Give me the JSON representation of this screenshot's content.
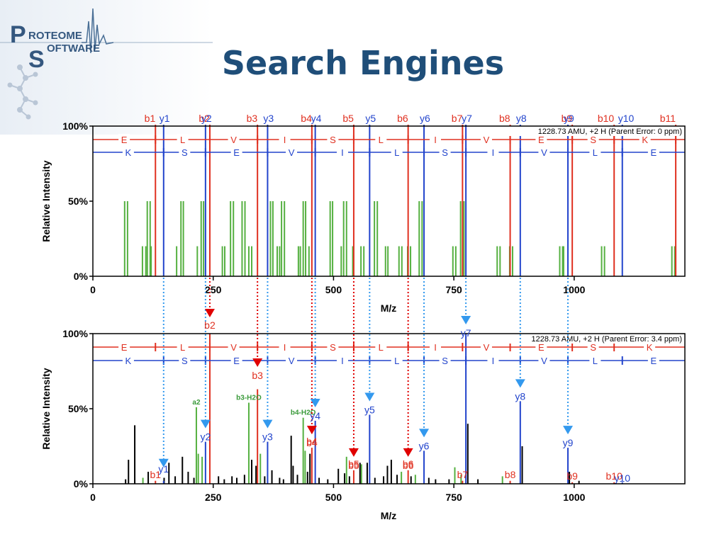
{
  "title": "Search Engines",
  "logo": {
    "line1": "PROTEOME",
    "line2": "SOFTWARE",
    "cap1": "P",
    "cap2": "S",
    "rest1": "ROTEOME",
    "rest2": "OFTWARE"
  },
  "colors": {
    "b_ion": "#e03020",
    "y_ion": "#2244cc",
    "green": "#55b040",
    "black": "#000000",
    "arrow_b": "#e00000",
    "arrow_y": "#3399ee",
    "title": "#1f4e79"
  },
  "chart_data": [
    {
      "type": "bar",
      "name": "theoretical",
      "xlabel": "M/z",
      "ylabel": "Relative Intensity",
      "xlim": [
        0,
        1230
      ],
      "xticks": [
        0,
        250,
        500,
        750,
        1000
      ],
      "yticks": [
        "0%",
        "50%",
        "100%"
      ],
      "info": "1228.73 AMU, +2 H (Parent Error: 0 ppm)",
      "b_sequence": [
        "E",
        "L",
        "V",
        "I",
        "S",
        "L",
        "I",
        "V",
        "E",
        "S",
        "K"
      ],
      "y_sequence": [
        "K",
        "S",
        "E",
        "V",
        "I",
        "L",
        "S",
        "I",
        "V",
        "L",
        "E"
      ],
      "b_ions": [
        {
          "label": "b1",
          "mz": 130
        },
        {
          "label": "b2",
          "mz": 243
        },
        {
          "label": "b3",
          "mz": 342
        },
        {
          "label": "b4",
          "mz": 455
        },
        {
          "label": "b5",
          "mz": 542
        },
        {
          "label": "b6",
          "mz": 655
        },
        {
          "label": "b7",
          "mz": 768
        },
        {
          "label": "b8",
          "mz": 867
        },
        {
          "label": "b9",
          "mz": 996
        },
        {
          "label": "b10",
          "mz": 1083
        },
        {
          "label": "b11",
          "mz": 1211
        }
      ],
      "y_ions": [
        {
          "label": "y1",
          "mz": 147
        },
        {
          "label": "y2",
          "mz": 234
        },
        {
          "label": "y3",
          "mz": 363
        },
        {
          "label": "y4",
          "mz": 462
        },
        {
          "label": "y5",
          "mz": 575
        },
        {
          "label": "y6",
          "mz": 688
        },
        {
          "label": "y7",
          "mz": 775
        },
        {
          "label": "y8",
          "mz": 888
        },
        {
          "label": "y9",
          "mz": 987
        },
        {
          "label": "y10",
          "mz": 1100
        }
      ],
      "green_peaks": [
        {
          "mz": 66,
          "y": 50
        },
        {
          "mz": 72,
          "y": 50
        },
        {
          "mz": 103,
          "y": 20
        },
        {
          "mz": 110,
          "y": 20
        },
        {
          "mz": 113,
          "y": 50
        },
        {
          "mz": 119,
          "y": 50
        },
        {
          "mz": 121,
          "y": 20
        },
        {
          "mz": 174,
          "y": 20
        },
        {
          "mz": 183,
          "y": 50
        },
        {
          "mz": 188,
          "y": 50
        },
        {
          "mz": 217,
          "y": 20
        },
        {
          "mz": 225,
          "y": 50
        },
        {
          "mz": 230,
          "y": 50
        },
        {
          "mz": 269,
          "y": 20
        },
        {
          "mz": 274,
          "y": 20
        },
        {
          "mz": 286,
          "y": 50
        },
        {
          "mz": 292,
          "y": 50
        },
        {
          "mz": 310,
          "y": 50
        },
        {
          "mz": 316,
          "y": 50
        },
        {
          "mz": 324,
          "y": 20
        },
        {
          "mz": 330,
          "y": 20
        },
        {
          "mz": 369,
          "y": 50
        },
        {
          "mz": 374,
          "y": 50
        },
        {
          "mz": 383,
          "y": 20
        },
        {
          "mz": 388,
          "y": 20
        },
        {
          "mz": 392,
          "y": 50
        },
        {
          "mz": 398,
          "y": 50
        },
        {
          "mz": 427,
          "y": 20
        },
        {
          "mz": 431,
          "y": 20
        },
        {
          "mz": 437,
          "y": 50
        },
        {
          "mz": 442,
          "y": 50
        },
        {
          "mz": 449,
          "y": 20
        },
        {
          "mz": 493,
          "y": 50
        },
        {
          "mz": 498,
          "y": 50
        },
        {
          "mz": 516,
          "y": 20
        },
        {
          "mz": 521,
          "y": 50
        },
        {
          "mz": 527,
          "y": 50
        },
        {
          "mz": 540,
          "y": 20
        },
        {
          "mz": 557,
          "y": 20
        },
        {
          "mz": 563,
          "y": 20
        },
        {
          "mz": 585,
          "y": 50
        },
        {
          "mz": 591,
          "y": 50
        },
        {
          "mz": 608,
          "y": 20
        },
        {
          "mz": 613,
          "y": 20
        },
        {
          "mz": 636,
          "y": 20
        },
        {
          "mz": 642,
          "y": 20
        },
        {
          "mz": 654,
          "y": 20
        },
        {
          "mz": 660,
          "y": 20
        },
        {
          "mz": 678,
          "y": 50
        },
        {
          "mz": 684,
          "y": 50
        },
        {
          "mz": 748,
          "y": 20
        },
        {
          "mz": 754,
          "y": 20
        },
        {
          "mz": 764,
          "y": 50
        },
        {
          "mz": 771,
          "y": 50
        },
        {
          "mz": 840,
          "y": 20
        },
        {
          "mz": 846,
          "y": 20
        },
        {
          "mz": 866,
          "y": 20
        },
        {
          "mz": 872,
          "y": 20
        },
        {
          "mz": 970,
          "y": 20
        },
        {
          "mz": 976,
          "y": 20
        },
        {
          "mz": 978,
          "y": 20
        },
        {
          "mz": 1057,
          "y": 20
        },
        {
          "mz": 1063,
          "y": 20
        },
        {
          "mz": 1203,
          "y": 20
        },
        {
          "mz": 1209,
          "y": 20
        }
      ]
    },
    {
      "type": "bar",
      "name": "observed",
      "xlabel": "M/z",
      "ylabel": "Relative Intensity",
      "xlim": [
        0,
        1230
      ],
      "xticks": [
        0,
        250,
        500,
        750,
        1000
      ],
      "yticks": [
        "0%",
        "50%",
        "100%"
      ],
      "info": "1228.73 AMU, +2 H (Parent Error: 3.4 ppm)",
      "b_sequence": [
        "E",
        "L",
        "V",
        "I",
        "S",
        "L",
        "I",
        "V",
        "E",
        "S",
        "K"
      ],
      "y_sequence": [
        "K",
        "S",
        "E",
        "V",
        "I",
        "L",
        "S",
        "I",
        "V",
        "L",
        "E"
      ],
      "annotations": [
        {
          "label": "a2",
          "mz": 215,
          "y": 51
        },
        {
          "label": "b3-H2O",
          "mz": 324,
          "y": 54
        },
        {
          "label": "b4-H2O",
          "mz": 437,
          "y": 44
        }
      ],
      "b_ions": [
        {
          "label": "b1",
          "mz": 130,
          "y": 2
        },
        {
          "label": "b2",
          "mz": 243,
          "y": 100
        },
        {
          "label": "b3",
          "mz": 342,
          "y": 63
        },
        {
          "label": "b4",
          "mz": 455,
          "y": 24
        },
        {
          "label": "b5",
          "mz": 542,
          "y": 9
        },
        {
          "label": "b6",
          "mz": 655,
          "y": 9
        },
        {
          "label": "b7",
          "mz": 768,
          "y": 2
        },
        {
          "label": "b8",
          "mz": 867,
          "y": 2
        },
        {
          "label": "b9",
          "mz": 996,
          "y": 1
        },
        {
          "label": "b10",
          "mz": 1083,
          "y": 1
        }
      ],
      "y_ions": [
        {
          "label": "y1",
          "mz": 147,
          "y": 2
        },
        {
          "label": "y2",
          "mz": 234,
          "y": 28
        },
        {
          "label": "y3",
          "mz": 363,
          "y": 28
        },
        {
          "label": "y4",
          "mz": 462,
          "y": 42
        },
        {
          "label": "y5",
          "mz": 575,
          "y": 46
        },
        {
          "label": "y6",
          "mz": 688,
          "y": 22
        },
        {
          "label": "y7",
          "mz": 775,
          "y": 100
        },
        {
          "label": "y8",
          "mz": 888,
          "y": 55
        },
        {
          "label": "y9",
          "mz": 987,
          "y": 24
        },
        {
          "label": "y10",
          "mz": 1100,
          "y": 1
        }
      ],
      "green_peaks": [
        {
          "mz": 104,
          "y": 4
        },
        {
          "mz": 215,
          "y": 51
        },
        {
          "mz": 219,
          "y": 20
        },
        {
          "mz": 227,
          "y": 18
        },
        {
          "mz": 324,
          "y": 54
        },
        {
          "mz": 348,
          "y": 20
        },
        {
          "mz": 437,
          "y": 44
        },
        {
          "mz": 441,
          "y": 22
        },
        {
          "mz": 527,
          "y": 18
        },
        {
          "mz": 558,
          "y": 13
        },
        {
          "mz": 641,
          "y": 8
        },
        {
          "mz": 670,
          "y": 6
        },
        {
          "mz": 752,
          "y": 11
        },
        {
          "mz": 765,
          "y": 6
        },
        {
          "mz": 851,
          "y": 5
        }
      ],
      "black_peaks": [
        {
          "mz": 68,
          "y": 3
        },
        {
          "mz": 74,
          "y": 16
        },
        {
          "mz": 87,
          "y": 39
        },
        {
          "mz": 115,
          "y": 8
        },
        {
          "mz": 148,
          "y": 4
        },
        {
          "mz": 158,
          "y": 14
        },
        {
          "mz": 171,
          "y": 5
        },
        {
          "mz": 186,
          "y": 18
        },
        {
          "mz": 198,
          "y": 8
        },
        {
          "mz": 210,
          "y": 4
        },
        {
          "mz": 261,
          "y": 5
        },
        {
          "mz": 273,
          "y": 3
        },
        {
          "mz": 289,
          "y": 5
        },
        {
          "mz": 299,
          "y": 4
        },
        {
          "mz": 315,
          "y": 6
        },
        {
          "mz": 330,
          "y": 16
        },
        {
          "mz": 339,
          "y": 12
        },
        {
          "mz": 357,
          "y": 5
        },
        {
          "mz": 372,
          "y": 9
        },
        {
          "mz": 388,
          "y": 4
        },
        {
          "mz": 396,
          "y": 3
        },
        {
          "mz": 412,
          "y": 32
        },
        {
          "mz": 416,
          "y": 12
        },
        {
          "mz": 425,
          "y": 6
        },
        {
          "mz": 446,
          "y": 8
        },
        {
          "mz": 451,
          "y": 20
        },
        {
          "mz": 470,
          "y": 4
        },
        {
          "mz": 488,
          "y": 3
        },
        {
          "mz": 510,
          "y": 10
        },
        {
          "mz": 523,
          "y": 7
        },
        {
          "mz": 533,
          "y": 5
        },
        {
          "mz": 555,
          "y": 14
        },
        {
          "mz": 570,
          "y": 14
        },
        {
          "mz": 586,
          "y": 4
        },
        {
          "mz": 604,
          "y": 5
        },
        {
          "mz": 612,
          "y": 12
        },
        {
          "mz": 620,
          "y": 16
        },
        {
          "mz": 632,
          "y": 6
        },
        {
          "mz": 661,
          "y": 5
        },
        {
          "mz": 698,
          "y": 4
        },
        {
          "mz": 712,
          "y": 3
        },
        {
          "mz": 740,
          "y": 3
        },
        {
          "mz": 779,
          "y": 40
        },
        {
          "mz": 800,
          "y": 3
        },
        {
          "mz": 892,
          "y": 25
        },
        {
          "mz": 990,
          "y": 8
        },
        {
          "mz": 1010,
          "y": 2
        }
      ],
      "arrows": [
        {
          "type": "y",
          "mz": 147,
          "label": "y1"
        },
        {
          "type": "y",
          "mz": 234,
          "label": "y2"
        },
        {
          "type": "b",
          "mz": 243,
          "label": "b2"
        },
        {
          "type": "b",
          "mz": 342,
          "label": "b3"
        },
        {
          "type": "y",
          "mz": 363,
          "label": "y3"
        },
        {
          "type": "b",
          "mz": 455,
          "label": "b4"
        },
        {
          "type": "y",
          "mz": 462,
          "label": "y4"
        },
        {
          "type": "b",
          "mz": 542,
          "label": "b5"
        },
        {
          "type": "y",
          "mz": 575,
          "label": "y5"
        },
        {
          "type": "b",
          "mz": 655,
          "label": "b6"
        },
        {
          "type": "y",
          "mz": 688,
          "label": "y6"
        },
        {
          "type": "y",
          "mz": 775,
          "label": "y7"
        },
        {
          "type": "y",
          "mz": 888,
          "label": "y8"
        },
        {
          "type": "y",
          "mz": 987,
          "label": "y9"
        }
      ]
    }
  ]
}
